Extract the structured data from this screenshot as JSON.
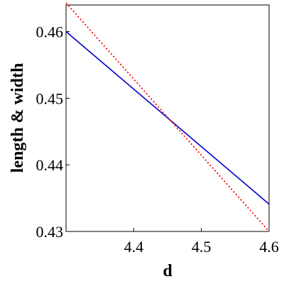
{
  "chart_data": {
    "type": "line",
    "title": "",
    "xlabel": "d",
    "ylabel": "length & width",
    "xlim": [
      4.3,
      4.6
    ],
    "ylim": [
      0.43,
      0.464
    ],
    "x_ticks": [
      4.4,
      4.5,
      4.6
    ],
    "x_tick_labels": [
      "4.4",
      "4.5",
      "4.6"
    ],
    "y_ticks": [
      0.43,
      0.44,
      0.45,
      0.46
    ],
    "y_tick_labels": [
      "0.43",
      "0.44",
      "0.45",
      "0.46"
    ],
    "grid": false,
    "legend": "none",
    "series": [
      {
        "x": [
          4.3,
          4.6
        ],
        "y": [
          0.46,
          0.4341
        ],
        "color": "#0000cc",
        "style": "solid"
      },
      {
        "x": [
          4.3,
          4.6
        ],
        "y": [
          0.4643,
          0.43
        ],
        "color": "#ff0000",
        "style": "dotted"
      }
    ]
  }
}
